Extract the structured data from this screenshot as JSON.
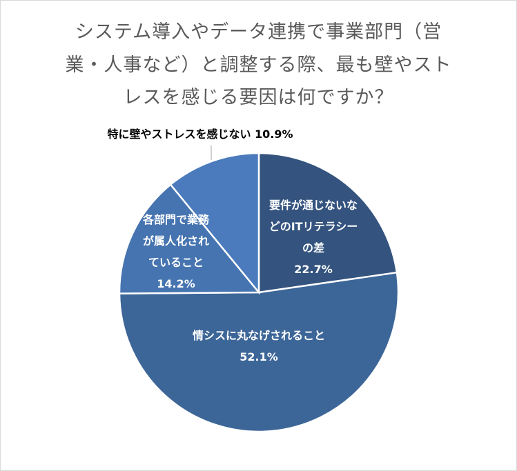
{
  "chart_data": {
    "type": "pie",
    "title_lines": [
      "システム導入やデータ連携で事業部門（営",
      "業・人事など）と調整する際、最も壁やスト",
      "レスを感じる要因は何ですか？"
    ],
    "slices": [
      {
        "name": "要件が通じないなどのITリテラシーの差",
        "value": 22.7,
        "label_lines": [
          "要件が通じないな",
          "どのITリテラシー",
          "の差",
          "22.7%"
        ],
        "color": "#34547f"
      },
      {
        "name": "情シスに丸なげされること",
        "value": 52.1,
        "label_lines": [
          "情シスに丸なげされること",
          "52.1%"
        ],
        "color": "#3d6698"
      },
      {
        "name": "各部門で業務が属人化されていること",
        "value": 14.2,
        "label_lines": [
          "各部門で業務",
          "が属人化され",
          "ていること",
          "14.2%"
        ],
        "color": "#4674b0"
      },
      {
        "name": "特に壁やストレスを感じない",
        "value": 10.9,
        "label_lines": [
          "特に壁やストレスを感じない 10.9%"
        ],
        "color": "#4b7bbd"
      }
    ]
  }
}
